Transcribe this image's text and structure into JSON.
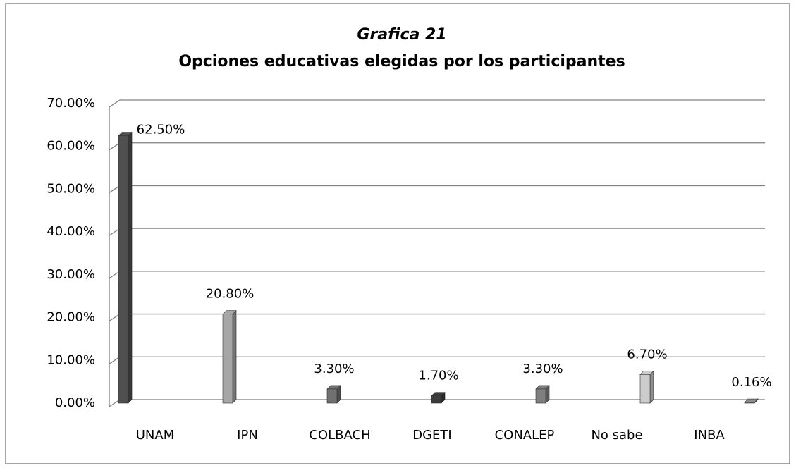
{
  "chart_data": {
    "type": "bar",
    "title": "Grafica 21",
    "subtitle": "Opciones educativas elegidas por los participantes",
    "categories": [
      "UNAM",
      "IPN",
      "COLBACH",
      "DGETI",
      "CONALEP",
      "No sabe",
      "INBA"
    ],
    "values": [
      62.5,
      20.8,
      3.3,
      1.7,
      3.3,
      6.7,
      0.16
    ],
    "value_labels": [
      "62.50%",
      "20.80%",
      "3.30%",
      "1.70%",
      "3.30%",
      "6.70%",
      "0.16%"
    ],
    "colors": [
      "#4f4f4f",
      "#a6a6a6",
      "#707070",
      "#3c3c3c",
      "#7f7f7f",
      "#cccccc",
      "#8c8c8c"
    ],
    "ylim": [
      0,
      70
    ],
    "yticks": [
      {
        "value": 0,
        "label": "0.00%"
      },
      {
        "value": 10,
        "label": "10.00%"
      },
      {
        "value": 20,
        "label": "20.00%"
      },
      {
        "value": 30,
        "label": "30.00%"
      },
      {
        "value": 40,
        "label": "40.00%"
      },
      {
        "value": 50,
        "label": "50.00%"
      },
      {
        "value": 60,
        "label": "60.00%"
      },
      {
        "value": 70,
        "label": "70.00%"
      }
    ],
    "grid": true
  }
}
